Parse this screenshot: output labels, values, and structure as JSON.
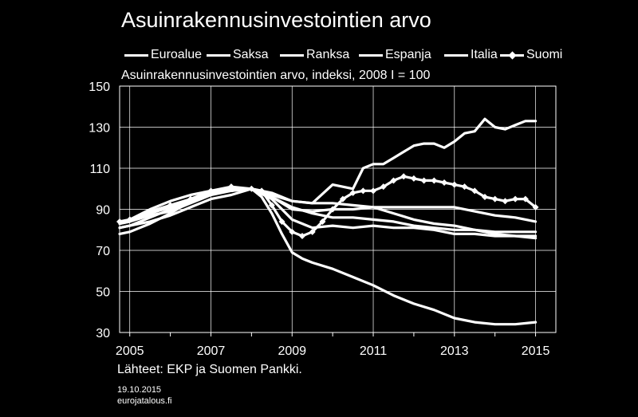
{
  "chart_data": {
    "type": "line",
    "title": "Asuinrakennusinvestointien arvo",
    "subtitle": "Asuinrakennusinvestointien arvo, indeksi, 2008 I = 100",
    "x_tick_labels": [
      "2005",
      "2007",
      "2009",
      "2011",
      "2013",
      "2015"
    ],
    "y_tick_labels": [
      "150",
      "130",
      "110",
      "90",
      "70",
      "50",
      "30"
    ],
    "xlim": [
      2004.75,
      2015.5
    ],
    "ylim": [
      30,
      150
    ],
    "grid": true,
    "legend_position": "top",
    "series": [
      {
        "name": "Euroalue",
        "marker": false,
        "x": [
          2004.75,
          2005,
          2005.5,
          2006,
          2006.5,
          2007,
          2007.5,
          2008,
          2008.25,
          2008.5,
          2009,
          2009.5,
          2010,
          2010.5,
          2011,
          2011.5,
          2012,
          2012.5,
          2013,
          2013.5,
          2014,
          2014.5,
          2015
        ],
        "y": [
          83,
          84,
          87,
          89,
          93,
          97,
          99,
          100,
          99,
          96,
          91,
          88,
          86,
          86,
          85,
          84,
          82,
          81,
          80,
          80,
          79,
          79,
          79
        ]
      },
      {
        "name": "Saksa",
        "marker": false,
        "x": [
          2004.75,
          2005,
          2005.5,
          2006,
          2006.5,
          2007,
          2007.5,
          2008,
          2008.5,
          2009,
          2009.5,
          2010,
          2010.5,
          2011,
          2011.5,
          2012,
          2012.5,
          2013,
          2013.5,
          2014,
          2014.5,
          2015
        ],
        "y": [
          81,
          82,
          84,
          87,
          91,
          95,
          97,
          100,
          97,
          94,
          93,
          93,
          92,
          91,
          91,
          91,
          91,
          91,
          89,
          87,
          86,
          84
        ]
      },
      {
        "name": "Ranksa",
        "marker": false,
        "x": [
          2004.75,
          2005,
          2005.5,
          2006,
          2006.5,
          2007,
          2007.5,
          2008,
          2008.5,
          2009,
          2009.5,
          2010,
          2010.5,
          2011,
          2011.5,
          2012,
          2012.5,
          2013,
          2013.5,
          2014,
          2014.5,
          2015
        ],
        "y": [
          78,
          79,
          83,
          88,
          94,
          99,
          100,
          100,
          96,
          90,
          89,
          90,
          90,
          91,
          88,
          85,
          83,
          82,
          80,
          78,
          77,
          76
        ]
      },
      {
        "name": "Espanja",
        "marker": false,
        "x": [
          2004.75,
          2005,
          2005.5,
          2006,
          2006.5,
          2007,
          2007.5,
          2008,
          2008.25,
          2008.5,
          2008.75,
          2009,
          2009.25,
          2009.5,
          2010,
          2010.5,
          2011,
          2011.5,
          2012,
          2012.5,
          2013,
          2013.5,
          2014,
          2014.5,
          2015
        ],
        "y": [
          84,
          85,
          90,
          94,
          97,
          99,
          100,
          100,
          96,
          88,
          78,
          69,
          66,
          64,
          61,
          57,
          53,
          48,
          44,
          41,
          37,
          35,
          34,
          34,
          35
        ]
      },
      {
        "name": "Italia",
        "marker": false,
        "x": [
          2004.75,
          2005,
          2005.5,
          2006,
          2006.5,
          2007,
          2007.5,
          2008,
          2008.5,
          2009,
          2009.5,
          2010,
          2010.5,
          2011,
          2011.5,
          2012,
          2012.5,
          2013,
          2013.5,
          2014,
          2014.5,
          2015
        ],
        "y": [
          81,
          82,
          86,
          90,
          94,
          98,
          99,
          100,
          95,
          85,
          81,
          82,
          81,
          82,
          81,
          81,
          80,
          78,
          78,
          77,
          77,
          77
        ]
      },
      {
        "name": "Suomi",
        "marker": true,
        "x": [
          2004.75,
          2005,
          2005.5,
          2006,
          2006.5,
          2007,
          2007.5,
          2008,
          2008.25,
          2008.5,
          2008.75,
          2009,
          2009.25,
          2009.5,
          2009.75,
          2010,
          2010.25,
          2010.5,
          2010.75,
          2011,
          2011.25,
          2011.5,
          2011.75,
          2012,
          2012.25,
          2012.5,
          2012.75,
          2013,
          2013.25,
          2013.5,
          2013.75,
          2014,
          2014.25,
          2014.5,
          2014.75,
          2015
        ],
        "y": [
          84,
          85,
          89,
          92,
          95,
          99,
          101,
          100,
          99,
          92,
          84,
          79,
          77,
          79,
          84,
          90,
          95,
          98,
          99,
          99,
          101,
          104,
          106,
          105,
          104,
          104,
          103,
          102,
          101,
          99,
          96,
          95,
          94,
          95,
          95,
          91
        ]
      }
    ],
    "extra_line": {
      "note": "unlabelled line without legend entry",
      "x": [
        2004.75,
        2005,
        2005.5,
        2006,
        2006.5,
        2007,
        2007.5,
        2008,
        2008.5,
        2009,
        2009.5,
        2010,
        2010.25,
        2010.5,
        2010.75,
        2011,
        2011.25,
        2011.5,
        2011.75,
        2012,
        2012.25,
        2012.5,
        2012.75,
        2013,
        2013.25,
        2013.5,
        2013.75,
        2014,
        2014.25,
        2014.5,
        2014.75,
        2015
      ],
      "y": [
        83,
        84,
        88,
        91,
        95,
        98,
        99,
        100,
        98,
        94,
        93,
        102,
        101,
        100,
        110,
        112,
        112,
        115,
        118,
        121,
        122,
        122,
        120,
        123,
        127,
        128,
        134,
        130,
        129,
        131,
        133,
        133
      ]
    }
  },
  "footer": {
    "source": "Lähteet: EKP ja Suomen Pankki.",
    "date": "19.10.2015",
    "site": "eurojatalous.fi"
  },
  "colors": {
    "background": "#000000",
    "foreground": "#ffffff"
  }
}
